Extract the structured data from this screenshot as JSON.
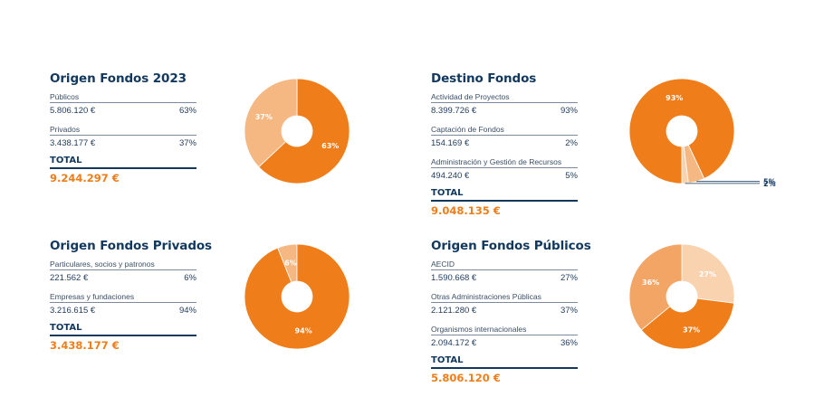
{
  "colors": {
    "navy": "#12385e",
    "orange": "#ee7d1a",
    "light_orange": "#f5b883",
    "mid_orange": "#f2a564",
    "pale_orange": "#f9d2b0"
  },
  "panels": [
    {
      "title": "Origen Fondos 2023",
      "rows": [
        {
          "label": "Públicos",
          "amount": "5.806.120 €",
          "pct": "63%"
        },
        {
          "label": "Privados",
          "amount": "3.438.177 €",
          "pct": "37%"
        }
      ],
      "total_label": "TOTAL",
      "total_value": "9.244.297 €"
    },
    {
      "title": "Destino Fondos",
      "rows": [
        {
          "label": "Actividad de Proyectos",
          "amount": "8.399.726 €",
          "pct": "93%"
        },
        {
          "label": "Captación de Fondos",
          "amount": "154.169 €",
          "pct": "2%"
        },
        {
          "label": "Administración y Gestión de Recursos",
          "amount": "494.240 €",
          "pct": "5%"
        }
      ],
      "total_label": "TOTAL",
      "total_value": "9.048.135 €"
    },
    {
      "title": "Origen Fondos Privados",
      "rows": [
        {
          "label": "Particulares, socios y patronos",
          "amount": "221.562 €",
          "pct": "6%"
        },
        {
          "label": "Empresas y fundaciones",
          "amount": "3.216.615 €",
          "pct": "94%"
        }
      ],
      "total_label": "TOTAL",
      "total_value": "3.438.177 €"
    },
    {
      "title": "Origen Fondos Públicos",
      "rows": [
        {
          "label": "AECID",
          "amount": "1.590.668 €",
          "pct": "27%"
        },
        {
          "label": "Otras Administraciones Públicas",
          "amount": "2.121.280 €",
          "pct": "37%"
        },
        {
          "label": "Organismos internacionales",
          "amount": "2.094.172 €",
          "pct": "36%"
        }
      ],
      "total_label": "TOTAL",
      "total_value": "5.806.120 €"
    }
  ],
  "chart_data": [
    {
      "type": "pie",
      "title": "Origen Fondos 2023",
      "categories": [
        "Públicos",
        "Privados"
      ],
      "values": [
        63,
        37
      ],
      "labels": [
        "63%",
        "37%"
      ],
      "colors": [
        "#ee7d1a",
        "#f5b883"
      ]
    },
    {
      "type": "pie",
      "title": "Destino Fondos",
      "categories": [
        "Actividad de Proyectos",
        "Administración y Gestión de Recursos",
        "Captación de Fondos"
      ],
      "values": [
        93,
        5,
        2
      ],
      "labels": [
        "93%",
        "5%",
        "2%"
      ],
      "colors": [
        "#ee7d1a",
        "#f5b883",
        "#f9d2b0"
      ]
    },
    {
      "type": "pie",
      "title": "Origen Fondos Privados",
      "categories": [
        "Particulares, socios y patronos",
        "Empresas y fundaciones"
      ],
      "values": [
        6,
        94
      ],
      "labels": [
        "6%",
        "94%"
      ],
      "colors": [
        "#f5b883",
        "#ee7d1a"
      ]
    },
    {
      "type": "pie",
      "title": "Origen Fondos Públicos",
      "categories": [
        "AECID",
        "Otras Administraciones Públicas",
        "Organismos internacionales"
      ],
      "values": [
        27,
        37,
        36
      ],
      "labels": [
        "27%",
        "37%",
        "36%"
      ],
      "colors": [
        "#f9d2b0",
        "#ee7d1a",
        "#f2a564"
      ]
    }
  ]
}
